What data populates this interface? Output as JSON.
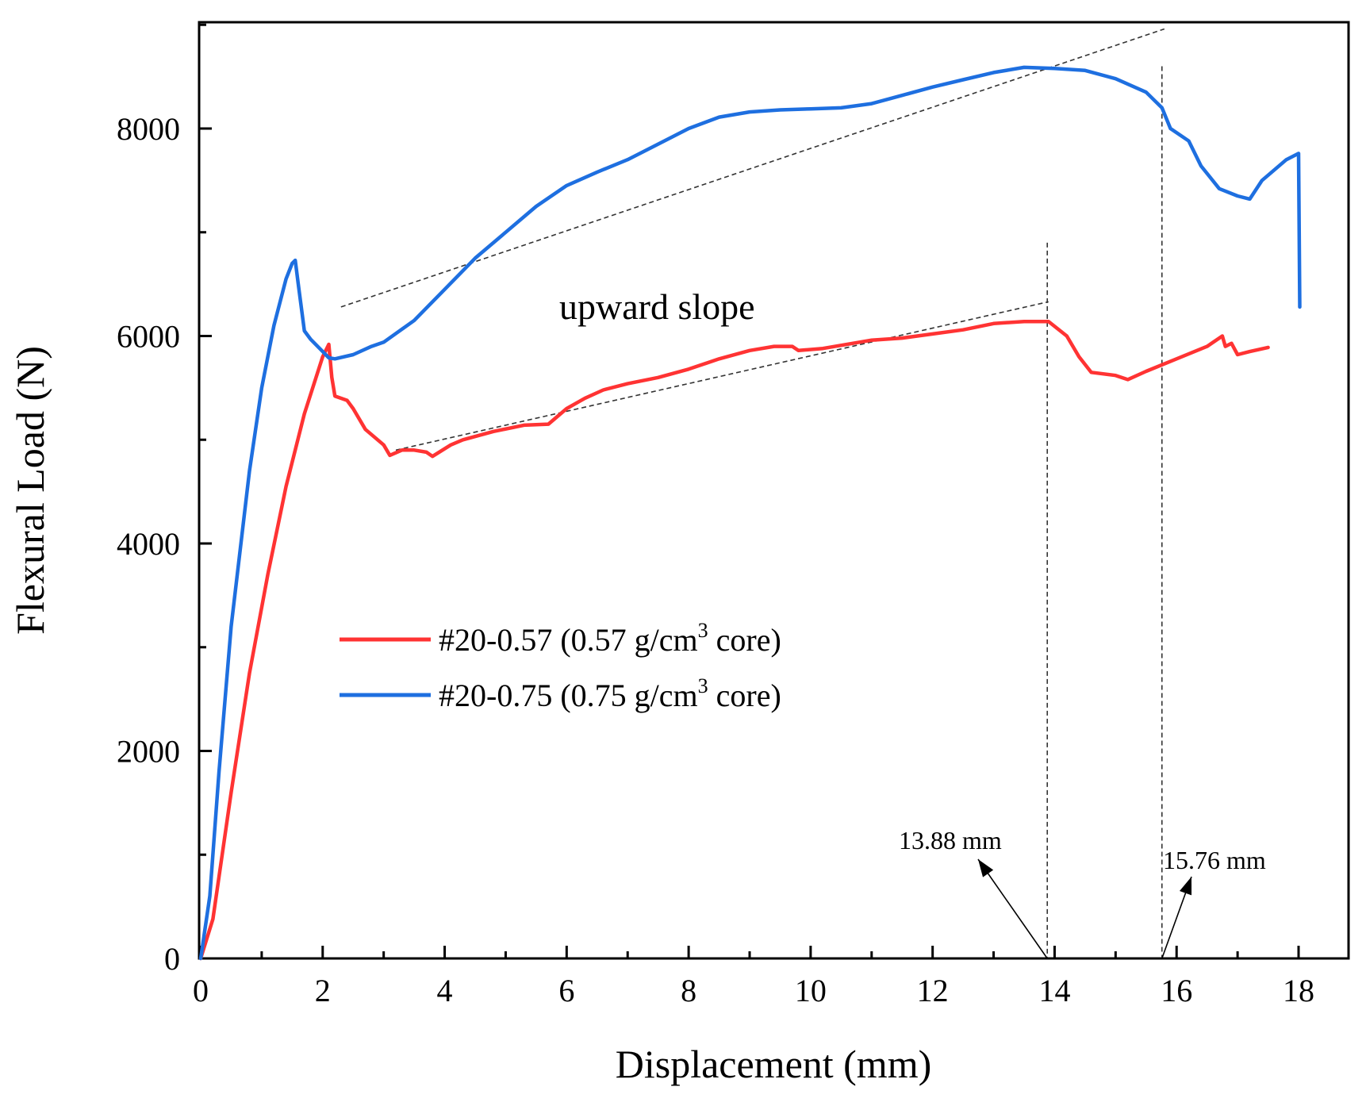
{
  "chart_data": {
    "type": "line",
    "title": "",
    "xlabel": "Displacement (mm)",
    "ylabel": "Flexural Load (N)",
    "xlim": [
      0,
      18.8
    ],
    "ylim": [
      0,
      9200
    ],
    "xticks": [
      0,
      2,
      4,
      6,
      8,
      10,
      12,
      14,
      16,
      18
    ],
    "yticks": [
      0,
      2000,
      4000,
      6000,
      8000
    ],
    "legend_position": "center-left",
    "series": [
      {
        "name": "#20-0.57",
        "label_main": "#20-0.57 (0.57 g/cm",
        "label_sup": "3",
        "label_tail": " core)",
        "color": "#ff3333",
        "x": [
          0,
          0.2,
          0.5,
          0.8,
          1.1,
          1.4,
          1.7,
          2.0,
          2.1,
          2.15,
          2.2,
          2.4,
          2.5,
          2.7,
          3.0,
          3.1,
          3.3,
          3.5,
          3.7,
          3.8,
          4.1,
          4.3,
          4.8,
          5.3,
          5.7,
          6.0,
          6.3,
          6.6,
          7.0,
          7.5,
          8.0,
          8.5,
          9.0,
          9.4,
          9.7,
          9.8,
          10.2,
          11.0,
          11.5,
          12.0,
          12.5,
          13.0,
          13.5,
          13.9,
          14.2,
          14.4,
          14.6,
          15.0,
          15.2,
          15.5,
          16.0,
          16.5,
          16.75,
          16.8,
          16.9,
          17.0,
          17.2,
          17.5
        ],
        "y": [
          0,
          380,
          1600,
          2750,
          3700,
          4550,
          5250,
          5800,
          5920,
          5600,
          5420,
          5380,
          5300,
          5100,
          4950,
          4850,
          4900,
          4900,
          4880,
          4840,
          4950,
          5000,
          5080,
          5140,
          5150,
          5300,
          5400,
          5480,
          5540,
          5600,
          5680,
          5780,
          5860,
          5900,
          5900,
          5860,
          5880,
          5960,
          5980,
          6020,
          6060,
          6120,
          6140,
          6140,
          6000,
          5800,
          5650,
          5620,
          5580,
          5660,
          5780,
          5900,
          6000,
          5900,
          5930,
          5820,
          5850,
          5890
        ]
      },
      {
        "name": "#20-0.75",
        "label_main": "#20-0.75 (0.75 g/cm",
        "label_sup": "3",
        "label_tail": " core)",
        "color": "#1e6fe0",
        "x": [
          0,
          0.15,
          0.3,
          0.5,
          0.8,
          1.0,
          1.2,
          1.4,
          1.5,
          1.55,
          1.6,
          1.7,
          1.8,
          2.0,
          2.1,
          2.2,
          2.5,
          2.8,
          3.0,
          3.5,
          4.0,
          4.5,
          5.0,
          5.5,
          6.0,
          6.5,
          7.0,
          7.5,
          8.0,
          8.5,
          9.0,
          9.5,
          10.0,
          10.5,
          11.0,
          11.5,
          12.0,
          12.5,
          13.0,
          13.5,
          14.0,
          14.5,
          15.0,
          15.5,
          15.76,
          15.9,
          16.2,
          16.4,
          16.7,
          17.0,
          17.2,
          17.4,
          17.8,
          18.0,
          18.02
        ],
        "y": [
          0,
          600,
          1800,
          3200,
          4700,
          5500,
          6100,
          6550,
          6700,
          6730,
          6500,
          6050,
          5970,
          5850,
          5790,
          5780,
          5820,
          5900,
          5940,
          6150,
          6450,
          6750,
          7000,
          7250,
          7450,
          7580,
          7700,
          7850,
          8000,
          8110,
          8160,
          8180,
          8190,
          8200,
          8240,
          8320,
          8400,
          8470,
          8540,
          8590,
          8580,
          8560,
          8480,
          8350,
          8200,
          8000,
          7880,
          7640,
          7420,
          7350,
          7320,
          7500,
          7700,
          7760,
          6280
        ]
      }
    ],
    "annotations": {
      "upward_slope_label": "upward slope",
      "marker_1_label": "13.88 mm",
      "marker_1_x": 13.88,
      "marker_2_label": "15.76 mm",
      "marker_2_x": 15.76,
      "trend_lines": [
        {
          "x": [
            2.3,
            15.8
          ],
          "y": [
            6280,
            8960
          ]
        },
        {
          "x": [
            3.2,
            13.9
          ],
          "y": [
            4900,
            6330
          ]
        }
      ]
    }
  }
}
